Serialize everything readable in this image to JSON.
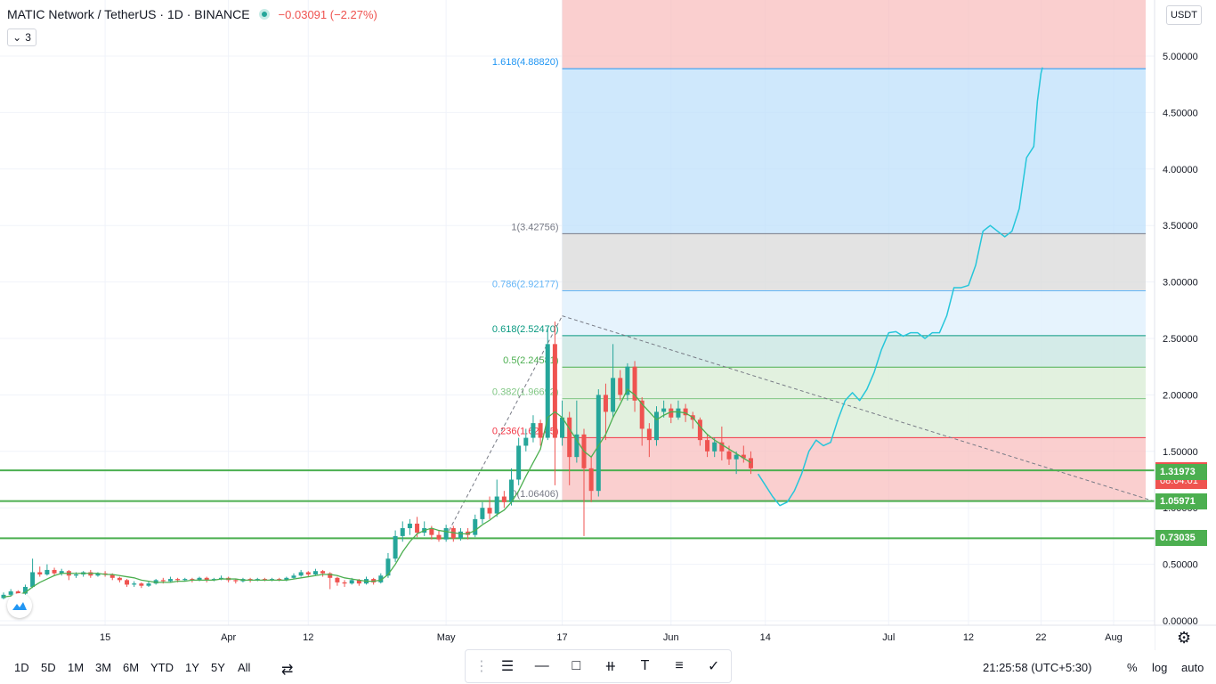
{
  "header": {
    "symbol_title": "MATIC Network / TetherUS · 1D · BINANCE",
    "change_text": "−0.03091 (−2.27%)",
    "studies_count": "3"
  },
  "unit_label": "USDT",
  "colors": {
    "up": "#26a69a",
    "down": "#ef5350",
    "ma": "#4caf50",
    "projection": "#26c6da",
    "support_line": "#4caf50",
    "fib_zone_red": "#f8bbbb",
    "fib_zone_blue": "#bbdefb",
    "fib_zone_gray": "#dcdcdc"
  },
  "chart_data": {
    "type": "candlestick",
    "title": "MATIC Network / TetherUS · 1D · BINANCE",
    "y_axis": {
      "min": 0.0,
      "max": 5.4,
      "ticks": [
        "5.00000",
        "4.50000",
        "4.00000",
        "3.50000",
        "3.00000",
        "2.50000",
        "2.00000",
        "1.50000",
        "1.00000",
        "0.50000",
        "0.00000"
      ],
      "tick_values": [
        5.0,
        4.5,
        4.0,
        3.5,
        3.0,
        2.5,
        2.0,
        1.5,
        1.0,
        0.5,
        0.0
      ]
    },
    "x_axis": {
      "labels": [
        {
          "text": "15",
          "day": 14
        },
        {
          "text": "Apr",
          "day": 31
        },
        {
          "text": "12",
          "day": 42
        },
        {
          "text": "May",
          "day": 61
        },
        {
          "text": "17",
          "day": 77
        },
        {
          "text": "Jun",
          "day": 92
        },
        {
          "text": "14",
          "day": 105
        },
        {
          "text": "Jul",
          "day": 122
        },
        {
          "text": "12",
          "day": 133
        },
        {
          "text": "22",
          "day": 143
        },
        {
          "text": "Aug",
          "day": 153
        }
      ]
    },
    "candles": [
      [
        0.2,
        0.23,
        0.25,
        0.19
      ],
      [
        0.23,
        0.26,
        0.28,
        0.22
      ],
      [
        0.26,
        0.24,
        0.27,
        0.23
      ],
      [
        0.24,
        0.3,
        0.32,
        0.23
      ],
      [
        0.3,
        0.43,
        0.55,
        0.29
      ],
      [
        0.43,
        0.41,
        0.48,
        0.39
      ],
      [
        0.41,
        0.45,
        0.5,
        0.4
      ],
      [
        0.45,
        0.42,
        0.47,
        0.4
      ],
      [
        0.42,
        0.44,
        0.46,
        0.4
      ],
      [
        0.44,
        0.4,
        0.45,
        0.36
      ],
      [
        0.4,
        0.41,
        0.43,
        0.38
      ],
      [
        0.41,
        0.43,
        0.44,
        0.39
      ],
      [
        0.43,
        0.4,
        0.45,
        0.38
      ],
      [
        0.4,
        0.42,
        0.43,
        0.39
      ],
      [
        0.42,
        0.41,
        0.44,
        0.39
      ],
      [
        0.41,
        0.38,
        0.42,
        0.36
      ],
      [
        0.38,
        0.36,
        0.39,
        0.34
      ],
      [
        0.36,
        0.32,
        0.37,
        0.3
      ],
      [
        0.32,
        0.33,
        0.35,
        0.3
      ],
      [
        0.33,
        0.31,
        0.34,
        0.29
      ],
      [
        0.31,
        0.33,
        0.35,
        0.3
      ],
      [
        0.33,
        0.36,
        0.37,
        0.32
      ],
      [
        0.36,
        0.35,
        0.38,
        0.33
      ],
      [
        0.35,
        0.37,
        0.39,
        0.34
      ],
      [
        0.37,
        0.36,
        0.38,
        0.34
      ],
      [
        0.36,
        0.37,
        0.38,
        0.35
      ],
      [
        0.37,
        0.36,
        0.38,
        0.34
      ],
      [
        0.36,
        0.38,
        0.39,
        0.35
      ],
      [
        0.38,
        0.36,
        0.39,
        0.34
      ],
      [
        0.36,
        0.37,
        0.38,
        0.35
      ],
      [
        0.37,
        0.38,
        0.4,
        0.36
      ],
      [
        0.38,
        0.36,
        0.39,
        0.34
      ],
      [
        0.36,
        0.35,
        0.37,
        0.33
      ],
      [
        0.35,
        0.37,
        0.38,
        0.34
      ],
      [
        0.37,
        0.36,
        0.38,
        0.34
      ],
      [
        0.36,
        0.37,
        0.38,
        0.35
      ],
      [
        0.37,
        0.36,
        0.38,
        0.35
      ],
      [
        0.36,
        0.37,
        0.38,
        0.35
      ],
      [
        0.37,
        0.36,
        0.38,
        0.35
      ],
      [
        0.36,
        0.38,
        0.39,
        0.35
      ],
      [
        0.38,
        0.4,
        0.42,
        0.37
      ],
      [
        0.4,
        0.43,
        0.45,
        0.39
      ],
      [
        0.43,
        0.41,
        0.44,
        0.39
      ],
      [
        0.41,
        0.44,
        0.46,
        0.4
      ],
      [
        0.44,
        0.42,
        0.45,
        0.39
      ],
      [
        0.42,
        0.38,
        0.43,
        0.28
      ],
      [
        0.38,
        0.34,
        0.39,
        0.31
      ],
      [
        0.34,
        0.33,
        0.36,
        0.3
      ],
      [
        0.33,
        0.36,
        0.38,
        0.32
      ],
      [
        0.36,
        0.33,
        0.37,
        0.31
      ],
      [
        0.33,
        0.37,
        0.39,
        0.32
      ],
      [
        0.37,
        0.34,
        0.38,
        0.32
      ],
      [
        0.34,
        0.4,
        0.42,
        0.33
      ],
      [
        0.4,
        0.55,
        0.6,
        0.38
      ],
      [
        0.55,
        0.75,
        0.8,
        0.52
      ],
      [
        0.75,
        0.82,
        0.88,
        0.7
      ],
      [
        0.82,
        0.86,
        0.9,
        0.76
      ],
      [
        0.86,
        0.78,
        0.92,
        0.74
      ],
      [
        0.78,
        0.82,
        0.88,
        0.75
      ],
      [
        0.82,
        0.76,
        0.84,
        0.72
      ],
      [
        0.76,
        0.72,
        0.8,
        0.7
      ],
      [
        0.72,
        0.82,
        0.85,
        0.7
      ],
      [
        0.82,
        0.73,
        0.84,
        0.7
      ],
      [
        0.73,
        0.79,
        0.82,
        0.71
      ],
      [
        0.79,
        0.76,
        0.82,
        0.72
      ],
      [
        0.76,
        0.9,
        0.94,
        0.74
      ],
      [
        0.9,
        1.0,
        1.05,
        0.86
      ],
      [
        1.0,
        0.95,
        1.1,
        0.9
      ],
      [
        0.95,
        1.1,
        1.25,
        0.92
      ],
      [
        1.1,
        1.05,
        1.15,
        1.0
      ],
      [
        1.05,
        1.25,
        1.35,
        1.02
      ],
      [
        1.25,
        1.55,
        1.62,
        1.2
      ],
      [
        1.55,
        1.62,
        1.7,
        1.5
      ],
      [
        1.62,
        1.75,
        1.82,
        1.58
      ],
      [
        1.75,
        1.62,
        1.78,
        1.55
      ],
      [
        1.62,
        2.45,
        2.6,
        1.6
      ],
      [
        2.45,
        1.62,
        2.65,
        1.2
      ],
      [
        1.62,
        1.8,
        1.95,
        1.55
      ],
      [
        1.8,
        1.45,
        1.85,
        1.2
      ],
      [
        1.45,
        1.65,
        1.95,
        1.4
      ],
      [
        1.65,
        1.35,
        1.7,
        0.75
      ],
      [
        1.35,
        1.15,
        1.45,
        1.05
      ],
      [
        1.15,
        2.0,
        2.05,
        1.1
      ],
      [
        2.0,
        1.85,
        2.1,
        1.6
      ],
      [
        1.85,
        2.15,
        2.45,
        1.8
      ],
      [
        2.15,
        2.0,
        2.22,
        1.95
      ],
      [
        2.0,
        2.25,
        2.28,
        1.95
      ],
      [
        2.25,
        1.95,
        2.3,
        1.85
      ],
      [
        1.95,
        1.7,
        1.98,
        1.55
      ],
      [
        1.7,
        1.6,
        1.75,
        1.45
      ],
      [
        1.6,
        1.85,
        1.9,
        1.55
      ],
      [
        1.85,
        1.88,
        1.95,
        1.8
      ],
      [
        1.88,
        1.8,
        1.92,
        1.75
      ],
      [
        1.8,
        1.88,
        1.95,
        1.78
      ],
      [
        1.88,
        1.82,
        1.92,
        1.76
      ],
      [
        1.82,
        1.78,
        1.85,
        1.7
      ],
      [
        1.78,
        1.6,
        1.8,
        1.55
      ],
      [
        1.6,
        1.5,
        1.65,
        1.45
      ],
      [
        1.5,
        1.58,
        1.62,
        1.45
      ],
      [
        1.58,
        1.5,
        1.72,
        1.42
      ],
      [
        1.5,
        1.43,
        1.55,
        1.38
      ],
      [
        1.43,
        1.47,
        1.5,
        1.3
      ],
      [
        1.47,
        1.44,
        1.55,
        1.4
      ],
      [
        1.44,
        1.35,
        1.5,
        1.3
      ]
    ],
    "ma_series": [
      0.21,
      0.22,
      0.23,
      0.25,
      0.3,
      0.34,
      0.37,
      0.4,
      0.42,
      0.42,
      0.42,
      0.42,
      0.42,
      0.42,
      0.41,
      0.41,
      0.4,
      0.39,
      0.38,
      0.36,
      0.35,
      0.34,
      0.34,
      0.34,
      0.35,
      0.35,
      0.36,
      0.36,
      0.36,
      0.36,
      0.37,
      0.37,
      0.37,
      0.36,
      0.36,
      0.36,
      0.36,
      0.36,
      0.36,
      0.36,
      0.37,
      0.38,
      0.39,
      0.4,
      0.41,
      0.41,
      0.4,
      0.38,
      0.37,
      0.36,
      0.35,
      0.35,
      0.36,
      0.41,
      0.5,
      0.61,
      0.7,
      0.77,
      0.8,
      0.82,
      0.8,
      0.79,
      0.78,
      0.77,
      0.77,
      0.8,
      0.85,
      0.89,
      0.94,
      0.98,
      1.05,
      1.15,
      1.28,
      1.4,
      1.52,
      1.8,
      1.85,
      1.8,
      1.7,
      1.6,
      1.5,
      1.45,
      1.55,
      1.65,
      1.8,
      1.92,
      2.05,
      2.0,
      1.92,
      1.85,
      1.78,
      1.82,
      1.85,
      1.85,
      1.84,
      1.8,
      1.72,
      1.65,
      1.6,
      1.56,
      1.52,
      1.48,
      1.44,
      1.4
    ],
    "projection": [
      [
        104,
        1.3
      ],
      [
        105,
        1.2
      ],
      [
        106,
        1.1
      ],
      [
        107,
        1.02
      ],
      [
        108,
        1.05
      ],
      [
        109,
        1.15
      ],
      [
        110,
        1.3
      ],
      [
        111,
        1.5
      ],
      [
        112,
        1.6
      ],
      [
        113,
        1.55
      ],
      [
        114,
        1.58
      ],
      [
        115,
        1.78
      ],
      [
        116,
        1.95
      ],
      [
        117,
        2.02
      ],
      [
        118,
        1.95
      ],
      [
        119,
        2.05
      ],
      [
        120,
        2.2
      ],
      [
        121,
        2.4
      ],
      [
        122,
        2.55
      ],
      [
        123,
        2.56
      ],
      [
        124,
        2.52
      ],
      [
        125,
        2.55
      ],
      [
        126,
        2.55
      ],
      [
        127,
        2.5
      ],
      [
        128,
        2.55
      ],
      [
        129,
        2.55
      ],
      [
        130,
        2.7
      ],
      [
        131,
        2.95
      ],
      [
        132,
        2.95
      ],
      [
        133,
        2.97
      ],
      [
        134,
        3.15
      ],
      [
        135,
        3.45
      ],
      [
        136,
        3.5
      ],
      [
        137,
        3.45
      ],
      [
        138,
        3.4
      ],
      [
        139,
        3.45
      ],
      [
        140,
        3.65
      ],
      [
        141,
        4.1
      ],
      [
        142,
        4.2
      ],
      [
        142.5,
        4.6
      ],
      [
        143,
        4.85
      ],
      [
        143.2,
        4.9
      ]
    ],
    "fib": {
      "x_start_day": 77,
      "x_end_day": 159,
      "levels": [
        {
          "label": "1.618(4.88820)",
          "value": 4.8882,
          "color": "#2196f3"
        },
        {
          "label": "1(3.42756)",
          "value": 3.42756,
          "color": "#787b86"
        },
        {
          "label": "0.786(2.92177)",
          "value": 2.92177,
          "color": "#64b5f6"
        },
        {
          "label": "0.618(2.52470)",
          "value": 2.5247,
          "color": "#089981"
        },
        {
          "label": "0.5(2.24581)",
          "value": 2.24581,
          "color": "#4caf50"
        },
        {
          "label": "0.382(1.96692)",
          "value": 1.96692,
          "color": "#81c784"
        },
        {
          "label": "0.236(1.62185)",
          "value": 1.62185,
          "color": "#f23645"
        },
        {
          "label": "0(1.06406)",
          "value": 1.06406,
          "color": "#787b86"
        }
      ]
    },
    "trend_lines": [
      {
        "from": [
          61,
          0.75
        ],
        "to": [
          77,
          2.7
        ]
      },
      {
        "from": [
          77,
          2.7
        ],
        "to": [
          159,
          1.05
        ]
      }
    ],
    "horizontal_lines": [
      {
        "value": 1.33195,
        "color": "#4caf50"
      },
      {
        "value": 1.05971,
        "color": "#4caf50"
      },
      {
        "value": 0.73035,
        "color": "#4caf50"
      }
    ],
    "price_labels": [
      {
        "value": 1.33195,
        "text": "1.33195",
        "sub": "08:04:01",
        "color": "#ef5350"
      },
      {
        "value": 1.31973,
        "text": "1.31973",
        "color": "#4caf50"
      },
      {
        "value": 1.05971,
        "text": "1.05971",
        "color": "#4caf50"
      },
      {
        "value": 0.73035,
        "text": "0.73035",
        "color": "#4caf50"
      }
    ]
  },
  "bottom": {
    "ranges": [
      "1D",
      "5D",
      "1M",
      "3M",
      "6M",
      "YTD",
      "1Y",
      "5Y",
      "All"
    ],
    "time_display": "21:25:58 (UTC+5:30)",
    "percent_label": "%",
    "log_label": "log",
    "auto_label": "auto"
  },
  "icons": {
    "compare": "compare-icon",
    "settings": "gear-icon",
    "logo": "tradingview-logo"
  }
}
